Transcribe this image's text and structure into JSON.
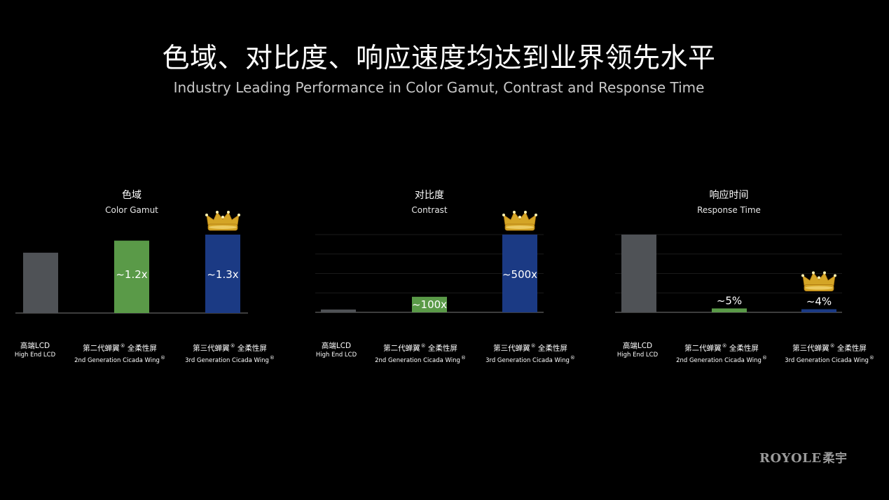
{
  "header": {
    "title": "色域、对比度、响应速度均达到业界领先水平",
    "subtitle": "Industry Leading Performance in Color Gamut, Contrast and Response Time"
  },
  "brand": {
    "logo_text": "ROYOLE",
    "logo_text_zh": "柔宇"
  },
  "colors": {
    "background": "#000000",
    "high_end_lcd": "#4f5256",
    "gen2": "#5a9a48",
    "gen3": "#1b3a84",
    "crown": "#d4a526"
  },
  "categories": [
    {
      "zh": "高端LCD",
      "en": "High End LCD",
      "reg": ""
    },
    {
      "zh": "第二代蝉翼",
      "zh_suffix": "全柔性屏",
      "en": "2nd Generation Cicada Wing",
      "reg": "®"
    },
    {
      "zh": "第三代蝉翼",
      "zh_suffix": "全柔性屏",
      "en": "3rd Generation Cicada Wing",
      "reg": "®"
    }
  ],
  "chart_data": [
    {
      "type": "bar",
      "title": "色域",
      "subtitle": "Color Gamut",
      "categories": [
        "高端LCD",
        "第二代蝉翼® 全柔性屏",
        "第三代蝉翼® 全柔性屏"
      ],
      "values": [
        1.0,
        1.2,
        1.3
      ],
      "data_labels": [
        "",
        "~1.2x",
        "~1.3x"
      ],
      "label_position": "inside",
      "crown_on": 2,
      "ylim": [
        0,
        1.3
      ],
      "grid": false
    },
    {
      "type": "bar",
      "title": "对比度",
      "subtitle": "Contrast",
      "categories": [
        "高端LCD",
        "第二代蝉翼® 全柔性屏",
        "第三代蝉翼® 全柔性屏"
      ],
      "values": [
        1,
        100,
        500
      ],
      "data_labels": [
        "",
        "~100x",
        "~500x"
      ],
      "label_position": "inside",
      "crown_on": 2,
      "ylim": [
        0,
        500
      ],
      "grid": true
    },
    {
      "type": "bar",
      "title": "响应时间",
      "subtitle": "Response Time",
      "categories": [
        "高端LCD",
        "第二代蝉翼® 全柔性屏",
        "第三代蝉翼® 全柔性屏"
      ],
      "values": [
        100,
        5,
        4
      ],
      "data_labels": [
        "",
        "~5%",
        "~4%"
      ],
      "label_position": "above",
      "crown_on": 2,
      "ylim": [
        0,
        100
      ],
      "grid": true
    }
  ]
}
